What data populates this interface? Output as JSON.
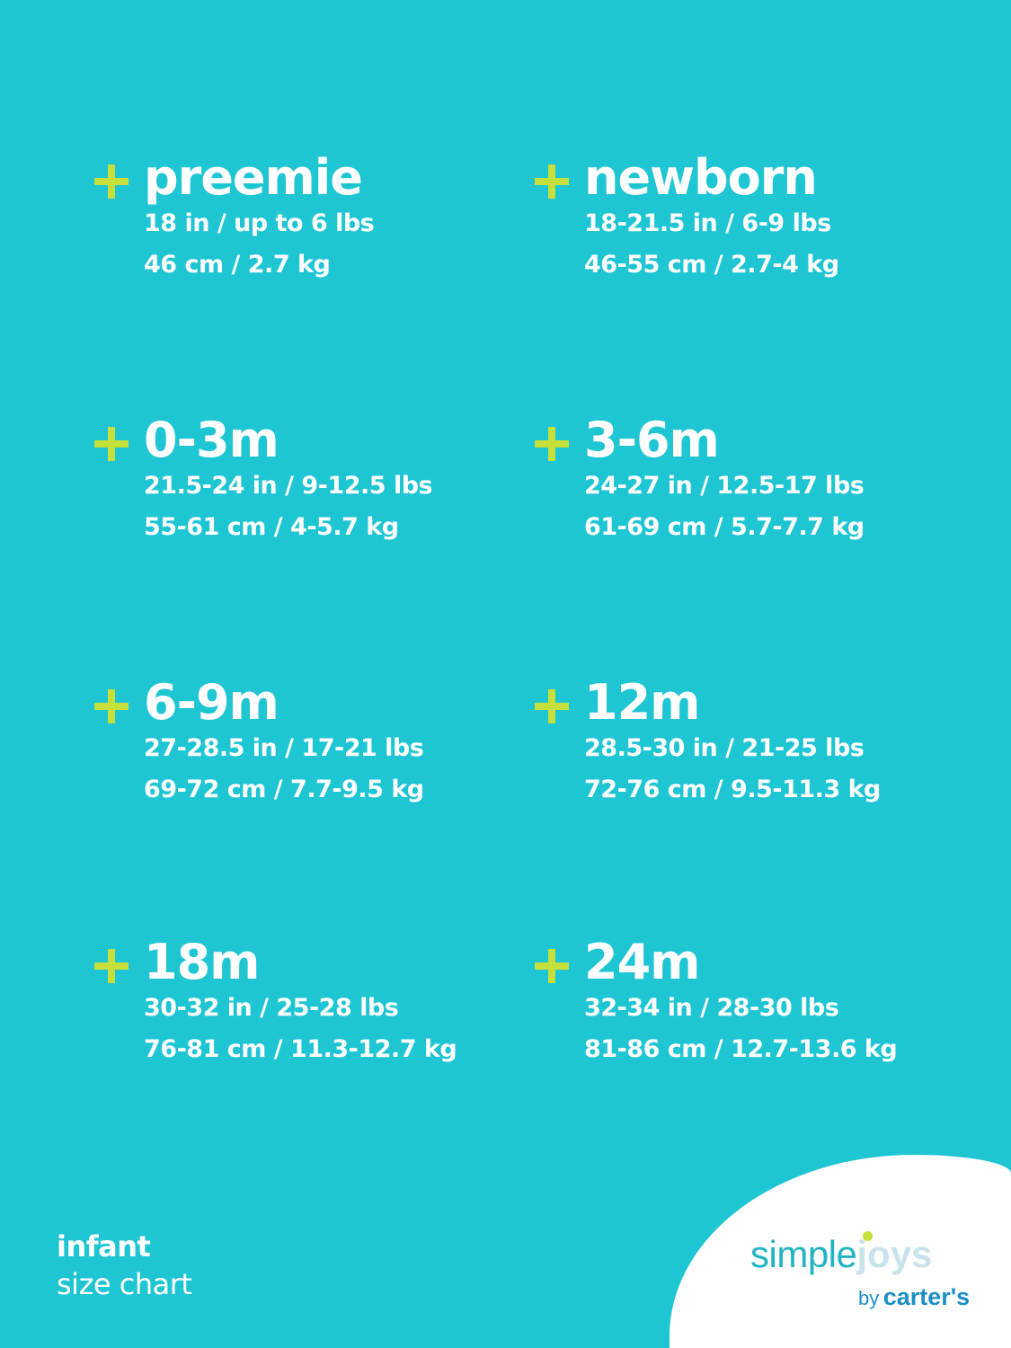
{
  "sizes": [
    {
      "label": "preemie",
      "imperial": "18 in / up to 6 lbs",
      "metric": "46 cm / 2.7 kg"
    },
    {
      "label": "newborn",
      "imperial": "18-21.5 in / 6-9 lbs",
      "metric": "46-55 cm / 2.7-4 kg"
    },
    {
      "label": "0-3m",
      "imperial": "21.5-24 in / 9-12.5 lbs",
      "metric": "55-61 cm / 4-5.7 kg"
    },
    {
      "label": "3-6m",
      "imperial": "24-27 in / 12.5-17 lbs",
      "metric": "61-69 cm / 5.7-7.7 kg"
    },
    {
      "label": "6-9m",
      "imperial": "27-28.5 in / 17-21 lbs",
      "metric": "69-72 cm / 7.7-9.5 kg"
    },
    {
      "label": "12m",
      "imperial": "28.5-30 in / 21-25 lbs",
      "metric": "72-76 cm / 9.5-11.3 kg"
    },
    {
      "label": "18m",
      "imperial": "30-32 in / 25-28 lbs",
      "metric": "76-81 cm / 11.3-12.7 kg"
    },
    {
      "label": "24m",
      "imperial": "32-34 in / 28-30 lbs",
      "metric": "81-86 cm / 12.7-13.6 kg"
    }
  ],
  "footer": {
    "line1": "infant",
    "line2": "size chart"
  },
  "logo": {
    "simple": "simple",
    "joys": "joys",
    "by": "by",
    "brand": "carter's"
  },
  "colors": {
    "background": "#1ec5d3",
    "plus": "#c5df3b",
    "text": "#ffffff"
  }
}
